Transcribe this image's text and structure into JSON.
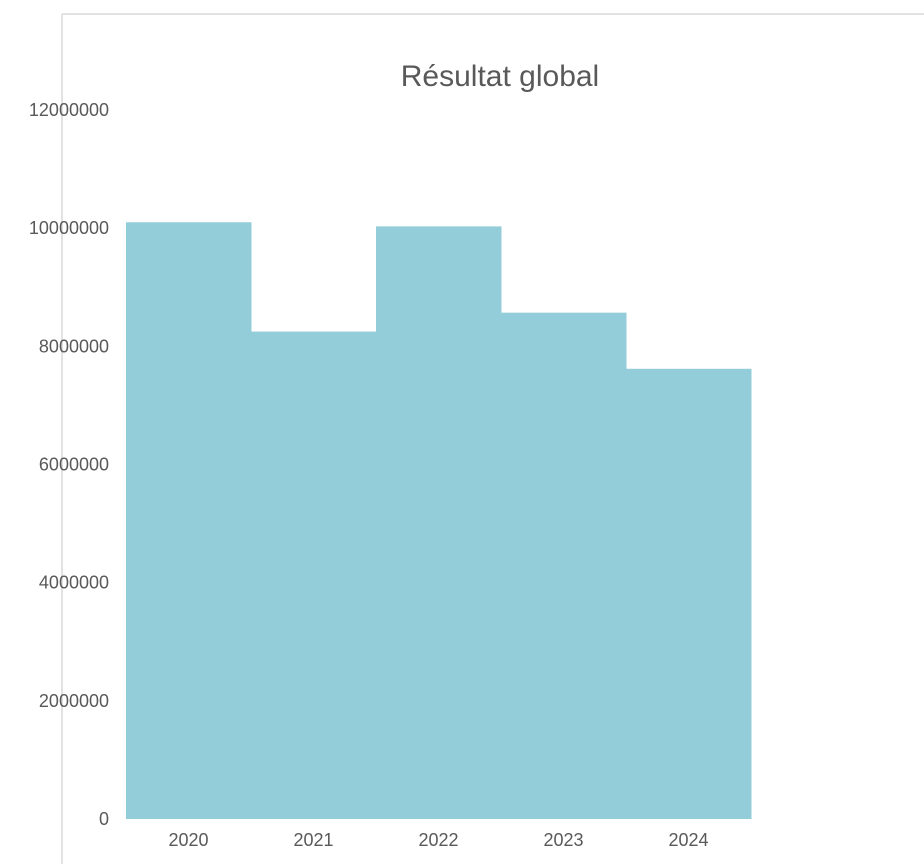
{
  "chart_data": {
    "type": "bar",
    "title": "Résultat global",
    "categories": [
      "2020",
      "2021",
      "2022",
      "2023",
      "2024"
    ],
    "values": [
      10100000,
      8250000,
      10030000,
      8570000,
      7620000
    ],
    "xlabel": "",
    "ylabel": "",
    "ylim": [
      0,
      12000000
    ],
    "yticks": [
      "0",
      "2000000",
      "4000000",
      "6000000",
      "8000000",
      "10000000",
      "12000000"
    ],
    "grid": false,
    "legend": "none",
    "bar_color": "#94CDDA",
    "axis_color": "#D9D9D9",
    "text_color": "#595959"
  }
}
